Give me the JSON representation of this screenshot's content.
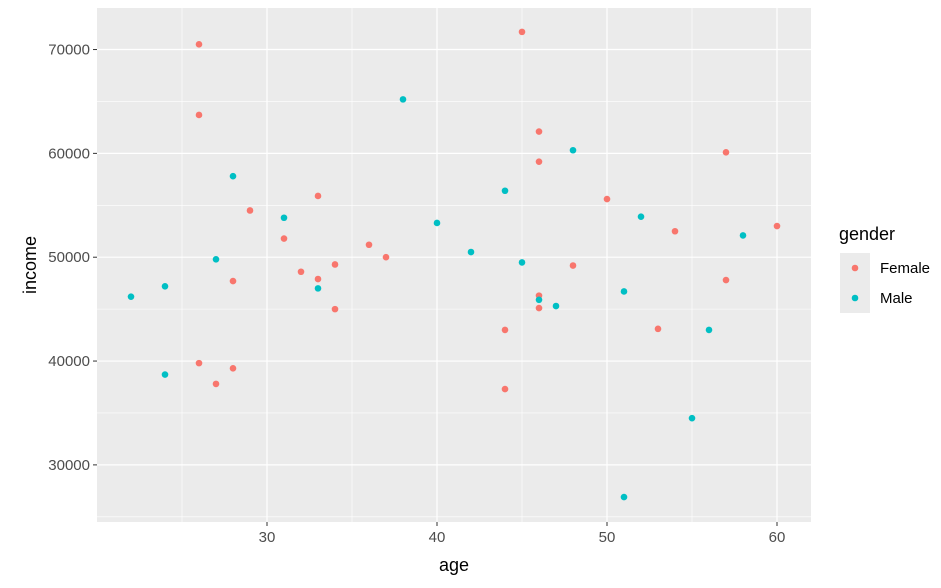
{
  "chart_data": {
    "type": "scatter",
    "title": "",
    "xlabel": "age",
    "ylabel": "income",
    "xlim": [
      20,
      62
    ],
    "ylim": [
      24500,
      74000
    ],
    "x_ticks": [
      30,
      40,
      50,
      60
    ],
    "y_ticks": [
      30000,
      40000,
      50000,
      60000,
      70000
    ],
    "x_tick_labels": [
      "30",
      "40",
      "50",
      "60"
    ],
    "y_tick_labels": [
      "30000",
      "40000",
      "50000",
      "60000",
      "70000"
    ],
    "grid": true,
    "legend": {
      "title": "gender",
      "position": "right"
    },
    "series": [
      {
        "name": "Female",
        "color": "#F8766D",
        "points": [
          [
            26,
            70500
          ],
          [
            26,
            63700
          ],
          [
            26,
            39800
          ],
          [
            27,
            37800
          ],
          [
            28,
            47700
          ],
          [
            28,
            39300
          ],
          [
            29,
            54500
          ],
          [
            31,
            51800
          ],
          [
            32,
            48600
          ],
          [
            33,
            55900
          ],
          [
            33,
            47900
          ],
          [
            34,
            49300
          ],
          [
            34,
            45000
          ],
          [
            36,
            51200
          ],
          [
            37,
            50000
          ],
          [
            44,
            43000
          ],
          [
            44,
            37300
          ],
          [
            45,
            71700
          ],
          [
            46,
            62100
          ],
          [
            46,
            59200
          ],
          [
            46,
            46300
          ],
          [
            46,
            45100
          ],
          [
            48,
            49200
          ],
          [
            50,
            55600
          ],
          [
            53,
            43100
          ],
          [
            54,
            52500
          ],
          [
            57,
            60100
          ],
          [
            57,
            47800
          ],
          [
            60,
            53000
          ]
        ]
      },
      {
        "name": "Male",
        "color": "#00BFC4",
        "points": [
          [
            22,
            46200
          ],
          [
            24,
            47200
          ],
          [
            24,
            38700
          ],
          [
            27,
            49800
          ],
          [
            28,
            57800
          ],
          [
            31,
            53800
          ],
          [
            33,
            47000
          ],
          [
            38,
            65200
          ],
          [
            40,
            53300
          ],
          [
            42,
            50500
          ],
          [
            44,
            56400
          ],
          [
            45,
            49500
          ],
          [
            46,
            45900
          ],
          [
            47,
            45300
          ],
          [
            48,
            60300
          ],
          [
            51,
            46700
          ],
          [
            51,
            26900
          ],
          [
            52,
            53900
          ],
          [
            55,
            34500
          ],
          [
            56,
            43000
          ],
          [
            58,
            52100
          ]
        ]
      }
    ]
  }
}
